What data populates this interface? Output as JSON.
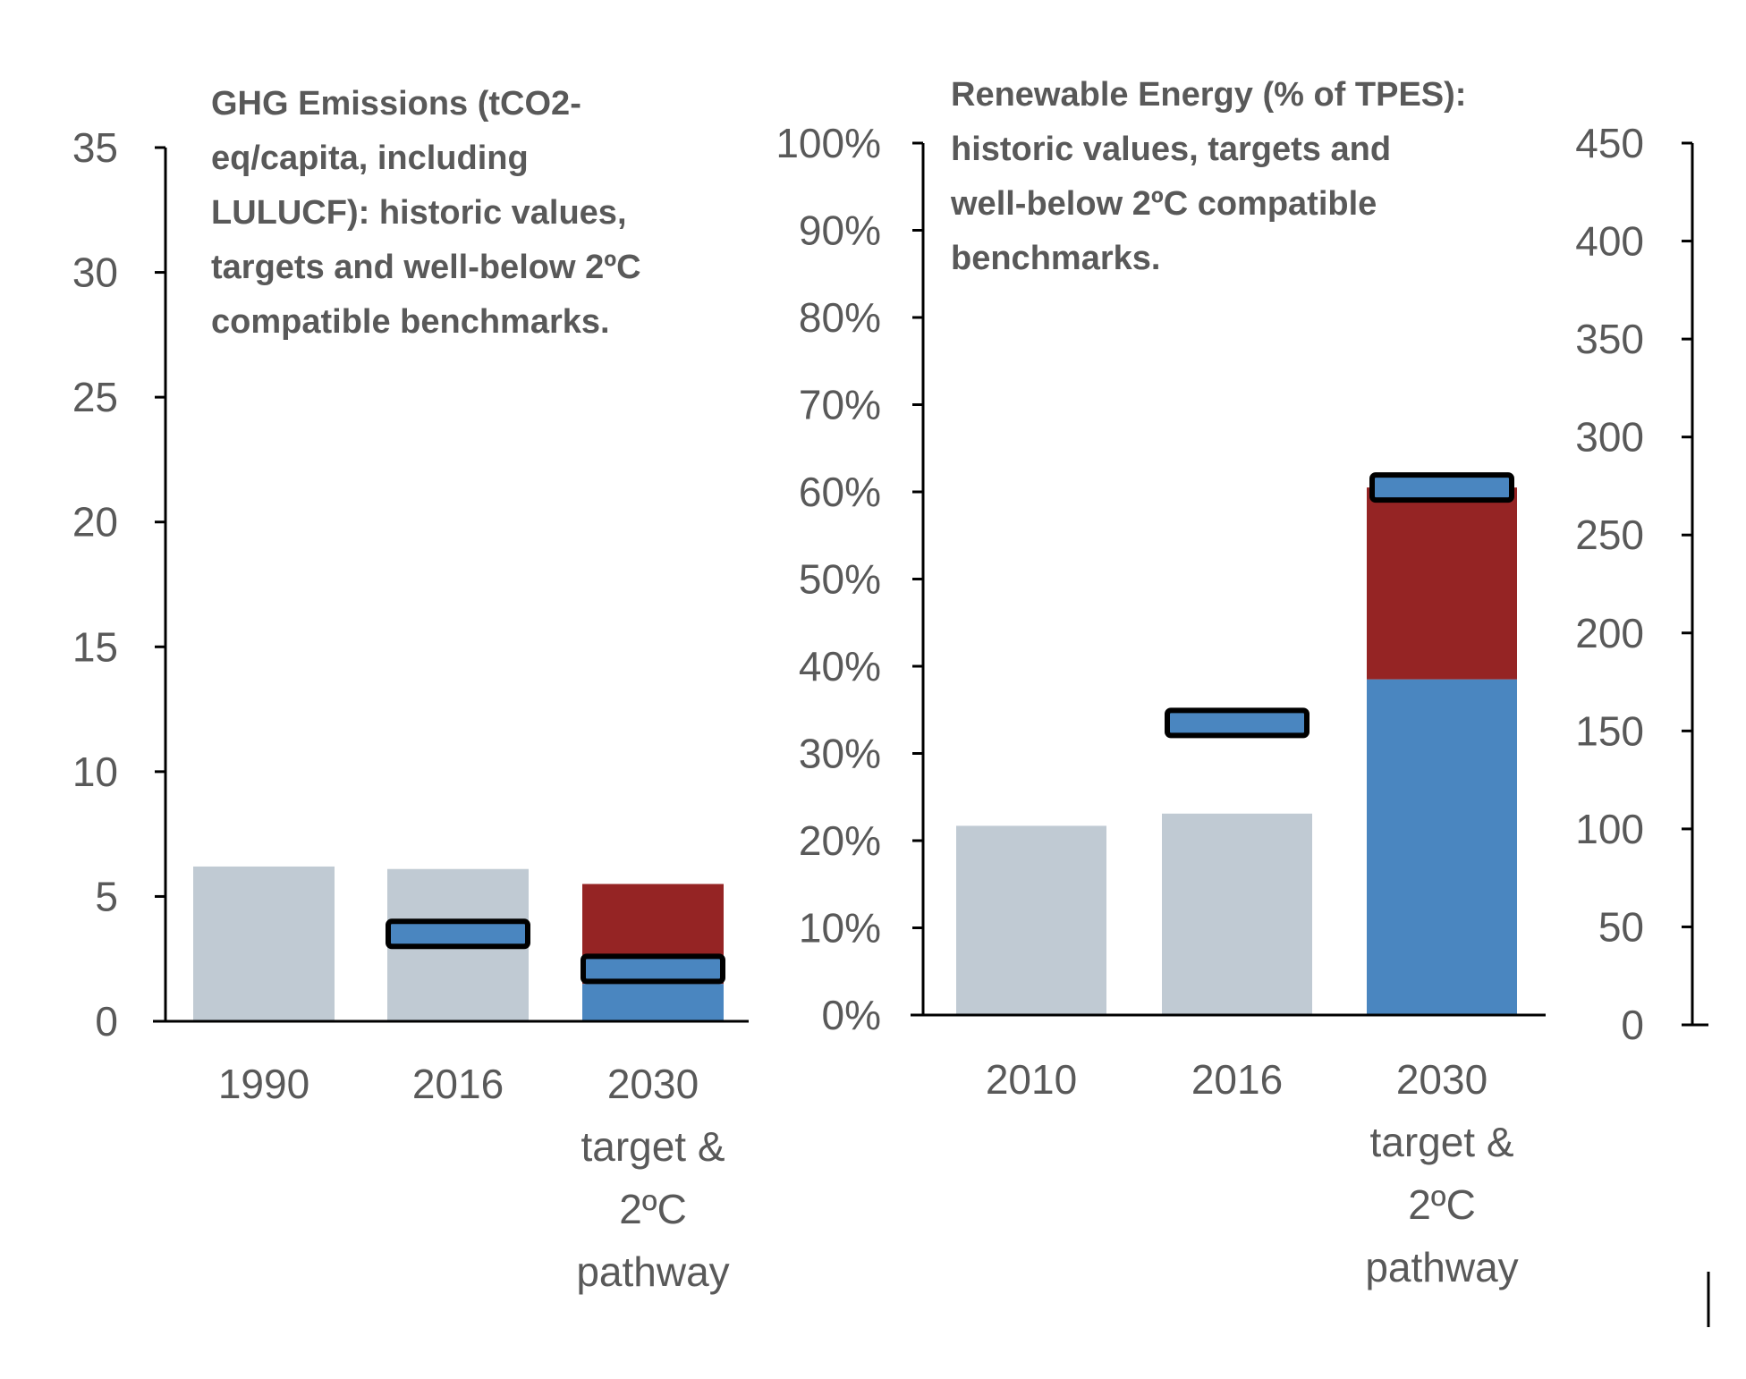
{
  "colors": {
    "historic": "#c0cad3",
    "target_marker": "#4a86c0",
    "benchmark_blue": "#4a86c0",
    "benchmark_red": "#952424",
    "axis": "#000000",
    "text": "#595959"
  },
  "chart_data": [
    {
      "type": "bar",
      "title_lines": [
        "GHG Emissions (tCO2-",
        "eq/capita, including",
        "LULUCF): historic values,",
        "targets and well-below 2ºC",
        "compatible benchmarks."
      ],
      "categories": [
        [
          "1990"
        ],
        [
          "2016"
        ],
        [
          "2030",
          "target &",
          "2ºC",
          "pathway"
        ]
      ],
      "y_ticks": [
        "0",
        "5",
        "10",
        "15",
        "20",
        "25",
        "30",
        "35"
      ],
      "ylim": [
        0,
        35
      ],
      "historic_values": [
        6.2,
        6.1,
        null
      ],
      "targets": [
        null,
        3.5,
        2.1
      ],
      "benchmark_range": {
        "category_index": 2,
        "low": 1.5,
        "high": 5.5
      },
      "grid": false
    },
    {
      "type": "bar",
      "title_lines": [
        "Renewable Energy (% of TPES):",
        "historic values, targets and",
        "well-below 2ºC compatible",
        "benchmarks."
      ],
      "categories": [
        [
          "2010"
        ],
        [
          "2016"
        ],
        [
          "2030",
          "target &",
          "2ºC",
          "pathway"
        ]
      ],
      "y_ticks": [
        "0%",
        "10%",
        "20%",
        "30%",
        "40%",
        "50%",
        "60%",
        "70%",
        "80%",
        "90%",
        "100%"
      ],
      "ylim": [
        0,
        100
      ],
      "secondary_y_ticks": [
        "0",
        "50",
        "100",
        "150",
        "200",
        "250",
        "300",
        "350",
        "400",
        "450"
      ],
      "secondary_ylim": [
        0,
        450
      ],
      "historic_values": [
        21.7,
        23.1,
        null
      ],
      "targets": [
        null,
        33.5,
        60.5
      ],
      "benchmark_range": {
        "category_index": 2,
        "low": 38.5,
        "high": 60.5
      },
      "grid": false
    }
  ]
}
